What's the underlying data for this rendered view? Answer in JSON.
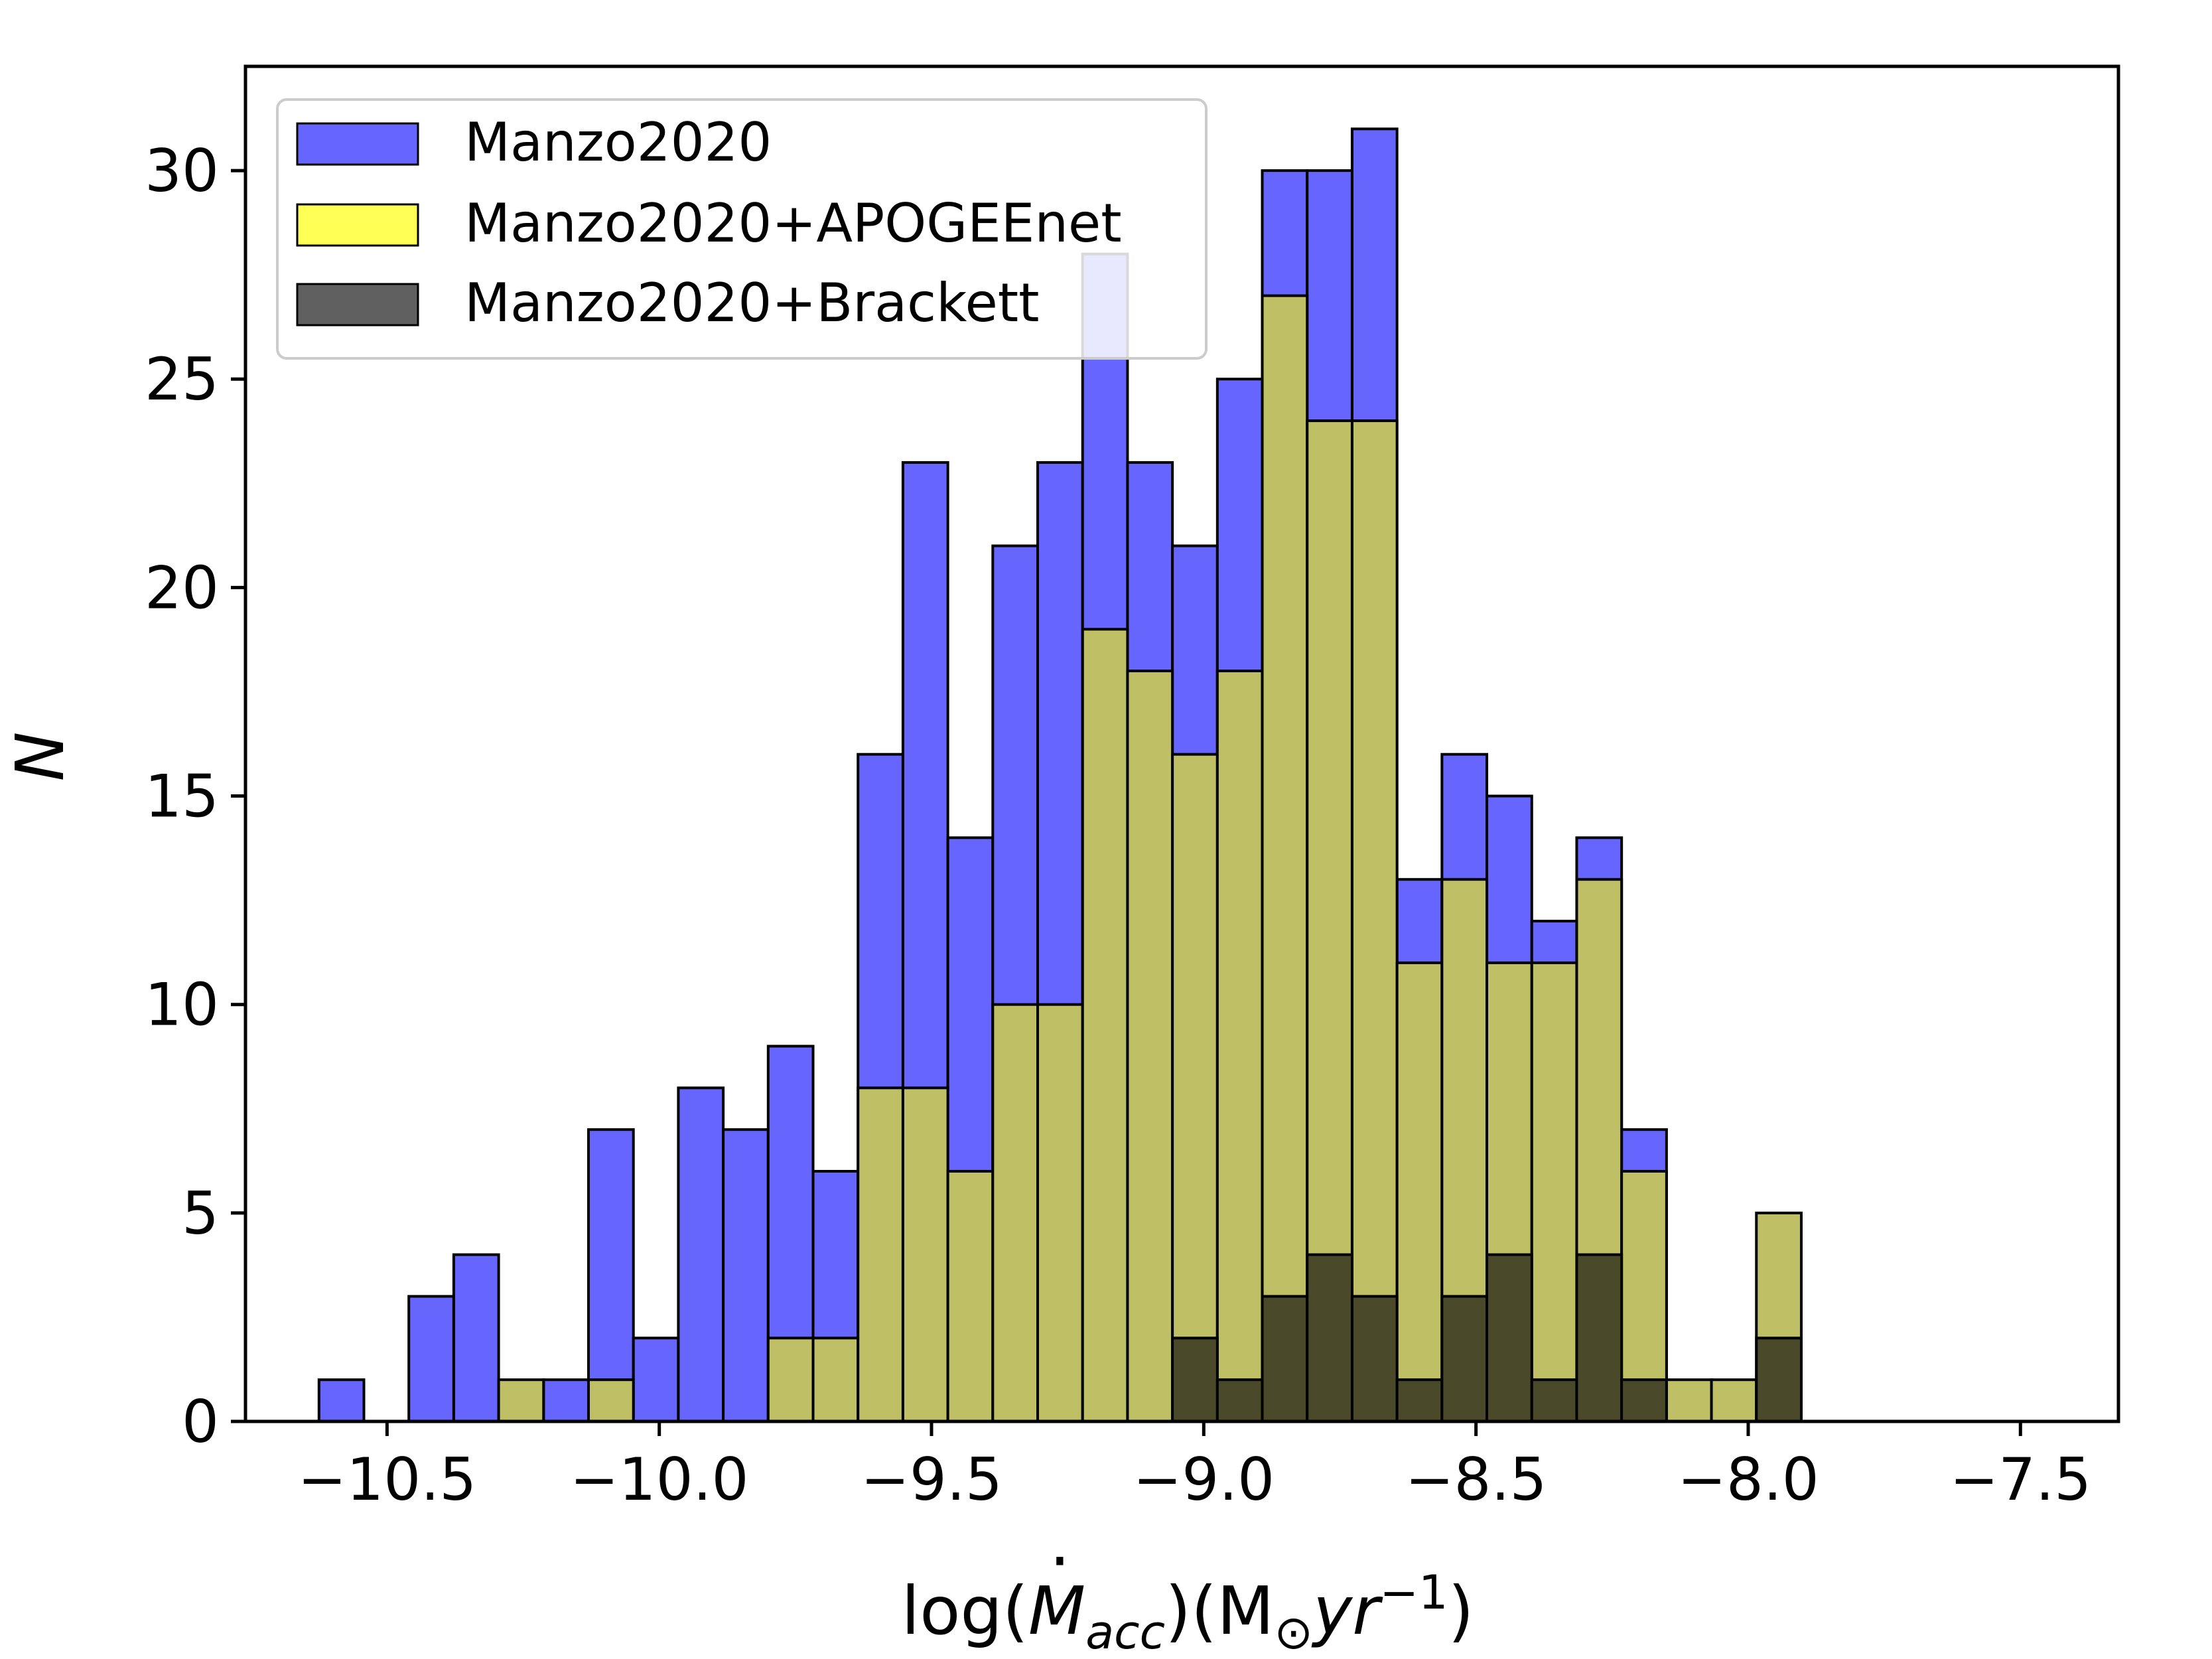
{
  "chart_data": {
    "type": "bar",
    "bin_start": -10.625,
    "bin_width": 0.0825,
    "bin_count": 33,
    "xlim": [
      -10.76,
      -7.32
    ],
    "ylim": [
      0,
      32.5
    ],
    "xticks": [
      -10.5,
      -10.0,
      -9.5,
      -9.0,
      -8.5,
      -8.0,
      -7.5
    ],
    "xtick_labels": [
      "−10.5",
      "−10.0",
      "−9.5",
      "−9.0",
      "−8.5",
      "−8.0",
      "−7.5"
    ],
    "yticks": [
      0,
      5,
      10,
      15,
      20,
      25,
      30
    ],
    "ytick_labels": [
      "0",
      "5",
      "10",
      "15",
      "20",
      "25",
      "30"
    ],
    "ylabel": "N",
    "xlabel": {
      "prefix": "log(",
      "mdot": "M",
      "sub": "acc",
      "mid": ")(M",
      "sun": "⊙",
      "yr": "yr",
      "exp": "−1",
      "close": ")"
    },
    "legend_position": "top-left",
    "series": [
      {
        "name": "Manzo2020",
        "color": "#6666ff",
        "values": [
          1,
          0,
          3,
          4,
          0,
          1,
          7,
          2,
          8,
          7,
          9,
          6,
          16,
          23,
          14,
          21,
          23,
          28,
          23,
          21,
          25,
          30,
          30,
          31,
          13,
          16,
          15,
          12,
          14,
          7,
          0,
          0,
          0
        ]
      },
      {
        "name": "Manzo2020+APOGEEnet",
        "color": "#bfbf66",
        "values": [
          0,
          0,
          0,
          0,
          1,
          0,
          1,
          0,
          0,
          0,
          2,
          2,
          8,
          8,
          6,
          10,
          10,
          19,
          18,
          16,
          18,
          27,
          24,
          24,
          11,
          13,
          11,
          11,
          13,
          6,
          1,
          1,
          5
        ]
      },
      {
        "name": "Manzo2020+Brackett",
        "color": "#4a4a2a",
        "values": [
          0,
          0,
          0,
          0,
          0,
          0,
          0,
          0,
          0,
          0,
          0,
          0,
          0,
          0,
          0,
          0,
          0,
          0,
          0,
          2,
          1,
          3,
          4,
          3,
          1,
          3,
          4,
          1,
          4,
          1,
          0,
          0,
          2
        ]
      }
    ]
  }
}
